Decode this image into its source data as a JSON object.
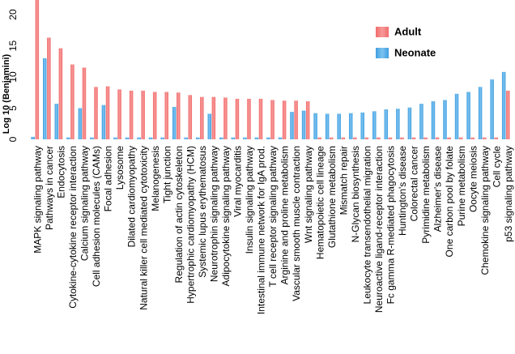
{
  "chart_data": {
    "type": "bar",
    "ylabel": "Log 10 (Benjamini)",
    "ylim": [
      0,
      22
    ],
    "yticks": [
      0,
      5,
      10,
      15,
      20
    ],
    "grid": false,
    "legend_position": "top-right",
    "categories": [
      "MAPK signaling pathway",
      "Pathways in cancer",
      "Endocytosis",
      "Cytokine-cytokine receptor interaction",
      "Calcium signaling pathway",
      "Cell adhesion molecules (CAMs)",
      "Focal adhesion",
      "Lysosome",
      "Dilated cardiomyopathy",
      "Natural killer cell mediated cytotoxicity",
      "Melanogenesis",
      "Tight junction",
      "Regulation of actin cytoskeleton",
      "Hypertrophic cardiomyopathy (HCM)",
      "Systemic lupus erythematosus",
      "Neurotrophin signaling pathway",
      "Adipocytokine signaling pathway",
      "Viral myocarditis",
      "Insulin signaling pathway",
      "Intestinal immune network for IgA prod.",
      "T cell receptor signaling pathway",
      "Arginine and proline metabolism",
      "Vascular smooth muscle contraction",
      "Wnt signaling pathway",
      "Hematopoietic cell lineage",
      "Glutathione metabolism",
      "Mismatch repair",
      "N-Glycan biosynthesis",
      "Leukocyte transendothelial migration",
      "Neuroactive ligand-receptor interaction",
      "Fc gamma R-mediated phagocytosis",
      "Huntington's disease",
      "Colorectal cancer",
      "Pyrimidine metabolism",
      "Alzheimer's disease",
      "One carbon pool by folate",
      "Purine metabolism",
      "Oocyte meiosis",
      "Chemokine signaling pathway",
      "Cell cycle",
      "p53 signaling pathway"
    ],
    "series": [
      {
        "name": "Adult",
        "color": "#f26b6b",
        "values": [
          22.5,
          16.3,
          14.6,
          12.0,
          11.5,
          8.4,
          8.5,
          8.0,
          7.8,
          7.8,
          7.6,
          7.6,
          7.5,
          7.1,
          6.8,
          6.8,
          6.7,
          6.5,
          6.5,
          6.5,
          6.3,
          6.2,
          6.2,
          6.1,
          0.3,
          0.3,
          0.3,
          0.3,
          0.3,
          0.3,
          0.3,
          0.3,
          0.3,
          0.3,
          0.3,
          0.3,
          0.3,
          0.3,
          0.3,
          0.3,
          7.8
        ]
      },
      {
        "name": "Neonate",
        "color": "#3f9ee0",
        "values": [
          0.4,
          13.0,
          5.7,
          0.3,
          5.0,
          0.3,
          5.5,
          0.3,
          0.3,
          0.3,
          0.3,
          0.3,
          5.2,
          0.3,
          0.3,
          4.1,
          0.3,
          0.3,
          0.3,
          0.3,
          0.3,
          0.3,
          4.4,
          4.6,
          4.2,
          4.1,
          4.1,
          4.2,
          4.3,
          4.5,
          4.8,
          4.9,
          5.1,
          5.7,
          6.1,
          6.3,
          7.3,
          7.6,
          8.4,
          9.6,
          10.8
        ]
      }
    ]
  }
}
